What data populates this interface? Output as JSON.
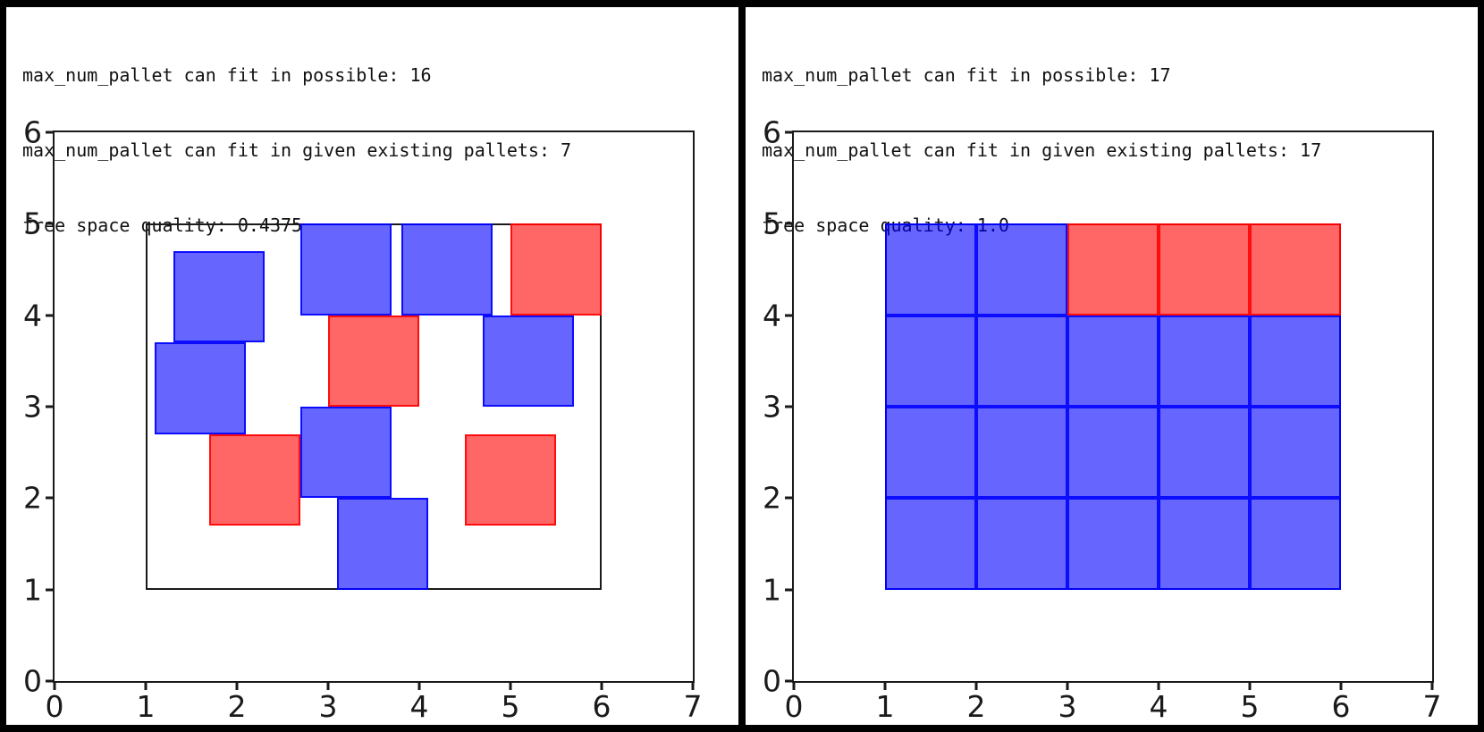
{
  "colors": {
    "frame_bg": "#000000",
    "panel_bg": "#ffffff",
    "text": "#111111",
    "spine": "#1a1a1a",
    "tick_label": "#1a1a1a",
    "container_edge": "#1a1a1a",
    "blue_fill": "rgba(0,0,255,0.60)",
    "blue_edge": "rgba(0,0,255,0.88)",
    "red_fill": "rgba(255,0,0,0.60)",
    "red_edge": "rgba(255,0,0,0.88)"
  },
  "chart_data": [
    {
      "type": "rectangles",
      "title_lines": [
        "max_num_pallet can fit in possible: 16",
        "max_num_pallet can fit in given existing pallets: 7",
        "free space quality: 0.4375"
      ],
      "stats": {
        "max_num_pallet_possible": 16,
        "max_num_pallet_existing": 7,
        "free_space_quality": 0.4375
      },
      "xlim": [
        0,
        7
      ],
      "ylim": [
        0,
        6
      ],
      "xticks": [
        0,
        1,
        2,
        3,
        4,
        5,
        6,
        7
      ],
      "yticks": [
        0,
        1,
        2,
        3,
        4,
        5,
        6
      ],
      "grid": false,
      "container": {
        "x": 1,
        "y": 1,
        "w": 5,
        "h": 4
      },
      "squares": [
        {
          "x": 3.0,
          "y": 3.0,
          "w": 1,
          "h": 1,
          "color": "red"
        },
        {
          "x": 5.0,
          "y": 4.0,
          "w": 1,
          "h": 1,
          "color": "red"
        },
        {
          "x": 1.7,
          "y": 1.7,
          "w": 1,
          "h": 1,
          "color": "red"
        },
        {
          "x": 4.5,
          "y": 1.7,
          "w": 1,
          "h": 1,
          "color": "red"
        },
        {
          "x": 1.3,
          "y": 3.7,
          "w": 1,
          "h": 1,
          "color": "blue"
        },
        {
          "x": 1.1,
          "y": 2.7,
          "w": 1,
          "h": 1,
          "color": "blue"
        },
        {
          "x": 2.7,
          "y": 4.0,
          "w": 1,
          "h": 1,
          "color": "blue"
        },
        {
          "x": 3.8,
          "y": 4.0,
          "w": 1,
          "h": 1,
          "color": "blue"
        },
        {
          "x": 4.7,
          "y": 3.0,
          "w": 1,
          "h": 1,
          "color": "blue"
        },
        {
          "x": 2.7,
          "y": 2.0,
          "w": 1,
          "h": 1,
          "color": "blue"
        },
        {
          "x": 3.1,
          "y": 1.0,
          "w": 1,
          "h": 1,
          "color": "blue"
        }
      ]
    },
    {
      "type": "rectangles",
      "title_lines": [
        "max_num_pallet can fit in possible: 17",
        "max_num_pallet can fit in given existing pallets: 17",
        "free space quality: 1.0"
      ],
      "stats": {
        "max_num_pallet_possible": 17,
        "max_num_pallet_existing": 17,
        "free_space_quality": 1.0
      },
      "xlim": [
        0,
        7
      ],
      "ylim": [
        0,
        6
      ],
      "xticks": [
        0,
        1,
        2,
        3,
        4,
        5,
        6,
        7
      ],
      "yticks": [
        0,
        1,
        2,
        3,
        4,
        5,
        6
      ],
      "grid": false,
      "container": {
        "x": 1,
        "y": 1,
        "w": 5,
        "h": 4
      },
      "squares": [
        {
          "x": 3,
          "y": 4,
          "w": 1,
          "h": 1,
          "color": "red"
        },
        {
          "x": 4,
          "y": 4,
          "w": 1,
          "h": 1,
          "color": "red"
        },
        {
          "x": 5,
          "y": 4,
          "w": 1,
          "h": 1,
          "color": "red"
        },
        {
          "x": 1,
          "y": 4,
          "w": 1,
          "h": 1,
          "color": "blue"
        },
        {
          "x": 2,
          "y": 4,
          "w": 1,
          "h": 1,
          "color": "blue"
        },
        {
          "x": 1,
          "y": 3,
          "w": 1,
          "h": 1,
          "color": "blue"
        },
        {
          "x": 2,
          "y": 3,
          "w": 1,
          "h": 1,
          "color": "blue"
        },
        {
          "x": 3,
          "y": 3,
          "w": 1,
          "h": 1,
          "color": "blue"
        },
        {
          "x": 4,
          "y": 3,
          "w": 1,
          "h": 1,
          "color": "blue"
        },
        {
          "x": 5,
          "y": 3,
          "w": 1,
          "h": 1,
          "color": "blue"
        },
        {
          "x": 1,
          "y": 2,
          "w": 1,
          "h": 1,
          "color": "blue"
        },
        {
          "x": 2,
          "y": 2,
          "w": 1,
          "h": 1,
          "color": "blue"
        },
        {
          "x": 3,
          "y": 2,
          "w": 1,
          "h": 1,
          "color": "blue"
        },
        {
          "x": 4,
          "y": 2,
          "w": 1,
          "h": 1,
          "color": "blue"
        },
        {
          "x": 5,
          "y": 2,
          "w": 1,
          "h": 1,
          "color": "blue"
        },
        {
          "x": 1,
          "y": 1,
          "w": 1,
          "h": 1,
          "color": "blue"
        },
        {
          "x": 2,
          "y": 1,
          "w": 1,
          "h": 1,
          "color": "blue"
        },
        {
          "x": 3,
          "y": 1,
          "w": 1,
          "h": 1,
          "color": "blue"
        },
        {
          "x": 4,
          "y": 1,
          "w": 1,
          "h": 1,
          "color": "blue"
        },
        {
          "x": 5,
          "y": 1,
          "w": 1,
          "h": 1,
          "color": "blue"
        }
      ]
    }
  ]
}
